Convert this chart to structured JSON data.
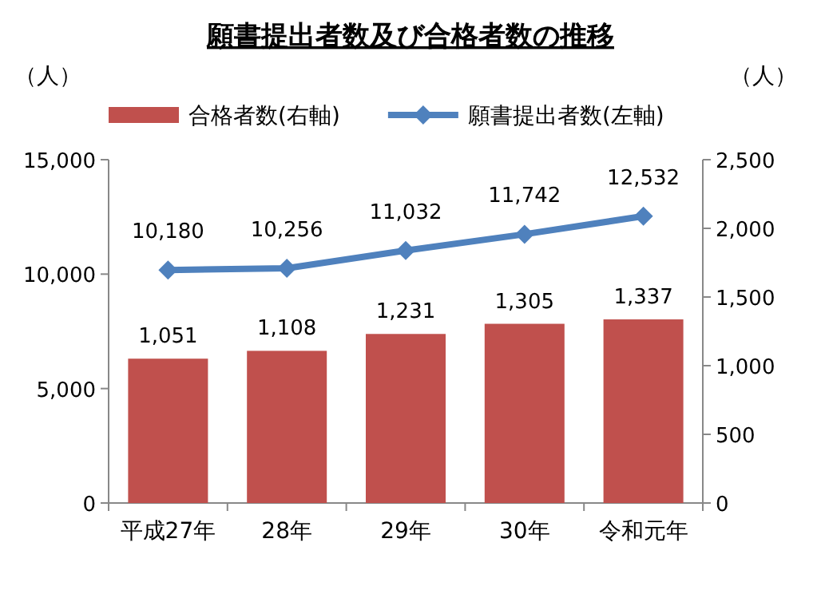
{
  "chart_data": {
    "type": "bar",
    "title": "願書提出者数及び合格者数の推移",
    "ylabel": "（人）",
    "y2label": "（人）",
    "categories": [
      "平成27年",
      "28年",
      "29年",
      "30年",
      "令和元年"
    ],
    "series": [
      {
        "name": "合格者数(右軸)",
        "axis": "y2",
        "color": "#c0504d",
        "values": [
          1051,
          1108,
          1231,
          1305,
          1337
        ],
        "value_labels": [
          "1,051",
          "1,108",
          "1,231",
          "1,305",
          "1,337"
        ]
      },
      {
        "name": "願書提出者数(左軸)",
        "type": "line",
        "axis": "y",
        "color": "#4f81bd",
        "marker": "diamond",
        "values": [
          10180,
          10256,
          11032,
          11742,
          12532
        ],
        "value_labels": [
          "10,180",
          "10,256",
          "11,032",
          "11,742",
          "12,532"
        ]
      }
    ],
    "ylim": [
      0,
      15000
    ],
    "yticks": [
      0,
      {
        "value": 5000,
        "label": "5,000"
      },
      {
        "value": 10000,
        "label": "10,000"
      },
      {
        "value": 15000,
        "label": "15,000"
      }
    ],
    "y2lim": [
      0,
      2500
    ],
    "y2ticks": [
      0,
      500,
      {
        "value": 1000,
        "label": "1,000"
      },
      {
        "value": 1500,
        "label": "1,500"
      },
      {
        "value": 2000,
        "label": "2,000"
      },
      {
        "value": 2500,
        "label": "2,500"
      }
    ],
    "legend": "top"
  }
}
